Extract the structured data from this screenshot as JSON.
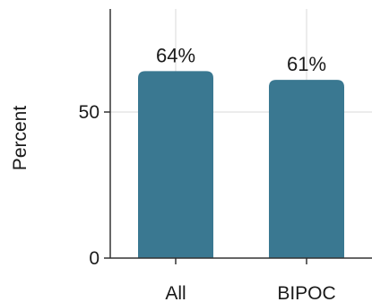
{
  "chart_data": {
    "type": "bar",
    "categories": [
      "All",
      "BIPOC"
    ],
    "values": [
      64,
      61
    ],
    "value_labels": [
      "64%",
      "61%"
    ],
    "title": "",
    "xlabel": "",
    "ylabel": "Percent",
    "ylim": [
      0,
      84
    ],
    "yticks": [
      {
        "value": 0,
        "label": "0"
      },
      {
        "value": 50,
        "label": "50"
      }
    ],
    "grid": true,
    "bar_color": "#3a7891",
    "grid_color": "#d9d9d9",
    "axis_color": "#333333"
  }
}
